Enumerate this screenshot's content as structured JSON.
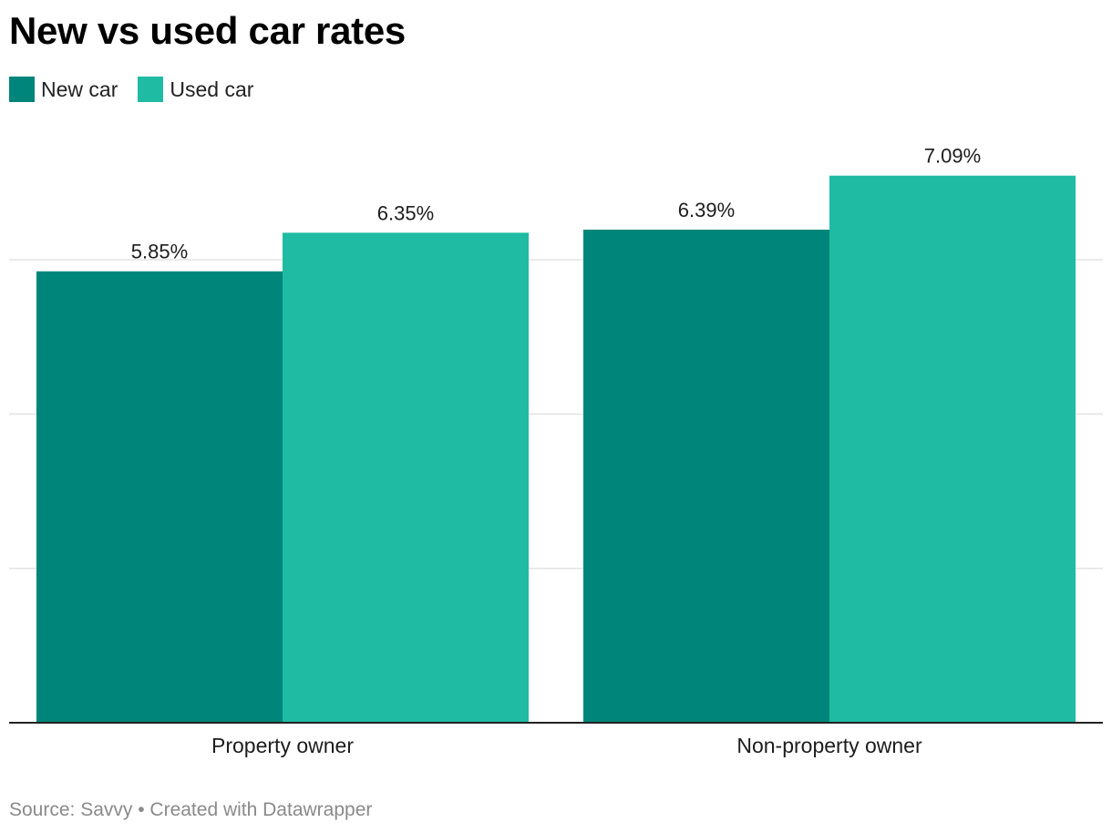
{
  "colors": {
    "new_car": "#00857a",
    "used_car": "#1fbba3",
    "gridline": "#e3e3e3",
    "axis": "#222222"
  },
  "chart_data": {
    "type": "bar",
    "title": "New vs used car rates",
    "categories": [
      "Property owner",
      "Non-property owner"
    ],
    "series": [
      {
        "name": "New car",
        "values": [
          5.85,
          6.39
        ],
        "labels": [
          "5.85%",
          "6.39%"
        ]
      },
      {
        "name": "Used car",
        "values": [
          6.35,
          7.09
        ],
        "labels": [
          "6.35%",
          "7.09%"
        ]
      }
    ],
    "ylim": [
      0,
      7.5
    ],
    "y_gridlines": [
      2,
      4,
      6
    ],
    "y_tick_labels_shown": false,
    "legend_position": "top-left",
    "xlabel": "",
    "ylabel": ""
  },
  "footer": {
    "source": "Source: Savvy • Created with Datawrapper"
  }
}
